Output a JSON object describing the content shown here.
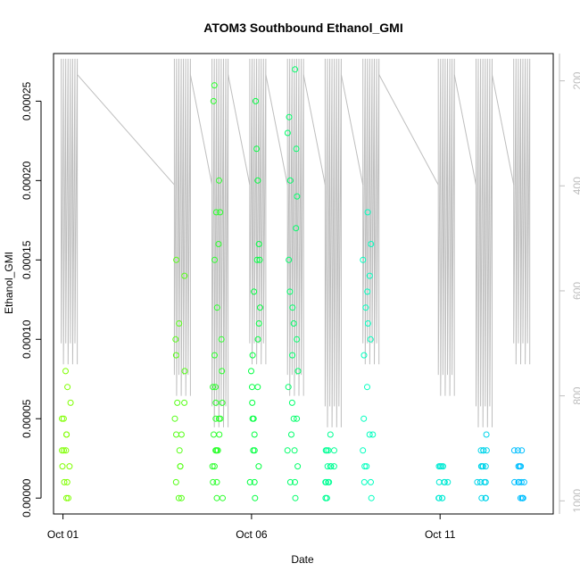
{
  "chart_data": {
    "type": "scatter",
    "title": "ATOM3 Southbound Ethanol_GMI",
    "xlabel": "Date",
    "ylabel": "Ethanol_GMI",
    "xlim": [
      "2017-09-30T18:00",
      "2017-10-14T00:00"
    ],
    "ylim": [
      -1e-05,
      0.00028
    ],
    "x_ticks": [
      {
        "date": "2017-10-01",
        "label": "Oct 01"
      },
      {
        "date": "2017-10-06",
        "label": "Oct 06"
      },
      {
        "date": "2017-10-11",
        "label": "Oct 11"
      }
    ],
    "y_ticks": [
      "0.00000",
      "0.00005",
      "0.00010",
      "0.00015",
      "0.00020",
      "0.00025"
    ],
    "y_tick_values": [
      0,
      5e-05,
      0.0001,
      0.00015,
      0.0002,
      0.00025
    ],
    "secondary_axis": {
      "side": "right",
      "reversed": true,
      "range": [
        148,
        1025
      ],
      "ticks": [
        "200",
        "400",
        "600",
        "800",
        "1000"
      ],
      "tick_values": [
        200,
        400,
        600,
        800,
        1000
      ],
      "line_color": "#bebebe"
    },
    "grid": false,
    "legend": "none",
    "marker": "open-circle",
    "color_scale": [
      "#7fff00",
      "#00ff40",
      "#00ffbf",
      "#00bfff"
    ],
    "flights": [
      {
        "date": "2017-10-01",
        "values": [
          0.0,
          1e-05,
          2e-05,
          3e-05,
          3e-05,
          4e-05,
          5e-05,
          6e-05,
          7e-05,
          8e-05,
          1e-05,
          2e-05,
          0.0,
          3e-05,
          4e-05,
          5e-05
        ]
      },
      {
        "date": "2017-10-04",
        "values": [
          0.0,
          1e-05,
          2e-05,
          3e-05,
          4e-05,
          5e-05,
          6e-05,
          8e-05,
          0.0001,
          0.00011,
          0.00014,
          0.00015,
          0.0,
          2e-05,
          4e-05,
          6e-05,
          9e-05
        ]
      },
      {
        "date": "2017-10-05",
        "values": [
          0.0,
          1e-05,
          2e-05,
          3e-05,
          3e-05,
          4e-05,
          5e-05,
          5e-05,
          6e-05,
          7e-05,
          8e-05,
          9e-05,
          0.0001,
          0.00012,
          0.00015,
          0.00016,
          0.00018,
          0.00018,
          0.0002,
          0.00025,
          0.00026,
          0.0,
          1e-05,
          2e-05,
          3e-05,
          4e-05,
          5e-05,
          6e-05,
          7e-05,
          3e-05
        ]
      },
      {
        "date": "2017-10-06",
        "values": [
          0.0,
          1e-05,
          2e-05,
          3e-05,
          4e-05,
          5e-05,
          6e-05,
          7e-05,
          8e-05,
          9e-05,
          0.0001,
          0.00011,
          0.00012,
          0.00015,
          0.00016,
          0.0002,
          0.00022,
          0.00025,
          1e-05,
          3e-05,
          5e-05,
          7e-05,
          0.00013,
          0.00015
        ]
      },
      {
        "date": "2017-10-07",
        "values": [
          0.0,
          1e-05,
          2e-05,
          3e-05,
          4e-05,
          5e-05,
          6e-05,
          7e-05,
          8e-05,
          9e-05,
          0.0001,
          0.00011,
          0.00012,
          0.00015,
          0.00017,
          0.00019,
          0.0002,
          0.00023,
          0.00024,
          0.00027,
          1e-05,
          3e-05,
          5e-05,
          0.00013,
          0.00022
        ]
      },
      {
        "date": "2017-10-08",
        "values": [
          0.0,
          0.0,
          1e-05,
          1e-05,
          2e-05,
          2e-05,
          3e-05,
          3e-05,
          4e-05,
          0.0,
          1e-05,
          2e-05,
          3e-05,
          1e-05,
          2e-05,
          3e-05
        ]
      },
      {
        "date": "2017-10-09",
        "values": [
          0.0,
          1e-05,
          2e-05,
          3e-05,
          4e-05,
          5e-05,
          7e-05,
          9e-05,
          0.00011,
          0.00013,
          0.00015,
          0.00016,
          0.00018,
          1e-05,
          2e-05,
          4e-05,
          0.0001,
          0.00014,
          0.00012
        ]
      },
      {
        "date": "2017-10-11",
        "values": [
          0.0,
          0.0,
          1e-05,
          1e-05,
          2e-05,
          2e-05,
          2e-05,
          0.0,
          1e-05,
          2e-05,
          0.0,
          1e-05
        ]
      },
      {
        "date": "2017-10-12",
        "values": [
          0.0,
          0.0,
          1e-05,
          1e-05,
          1e-05,
          2e-05,
          2e-05,
          2e-05,
          3e-05,
          3e-05,
          4e-05,
          0.0,
          1e-05,
          2e-05,
          3e-05,
          1e-05,
          0.0,
          2e-05,
          3e-05
        ]
      },
      {
        "date": "2017-10-13",
        "values": [
          0.0,
          0.0,
          1e-05,
          1e-05,
          1e-05,
          2e-05,
          2e-05,
          3e-05,
          3e-05,
          0.0,
          1e-05,
          2e-05,
          0.0,
          1e-05,
          3e-05
        ]
      }
    ]
  }
}
